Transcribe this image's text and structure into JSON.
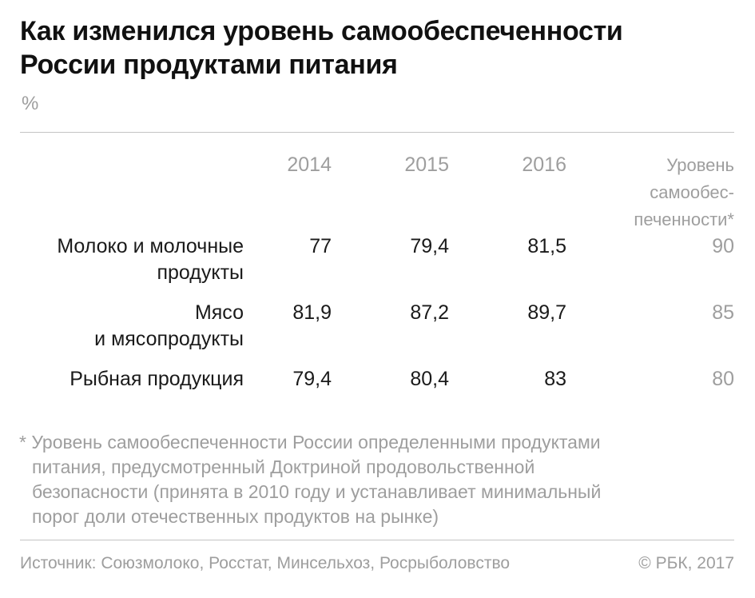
{
  "title": {
    "line1": "Как изменился уровень самообеспеченности",
    "line2": "России продуктами питания"
  },
  "unit": "%",
  "chart_data": {
    "type": "table",
    "columns": [
      "2014",
      "2015",
      "2016"
    ],
    "norm_header": [
      "Уровень",
      "самообес-",
      "печенности*"
    ],
    "rows": [
      {
        "label": [
          "Молоко и молочные",
          "продукты"
        ],
        "values": [
          "77",
          "79,4",
          "81,5"
        ],
        "norm": "90"
      },
      {
        "label": [
          "Мясо",
          "и мясопродукты"
        ],
        "values": [
          "81,9",
          "87,2",
          "89,7"
        ],
        "norm": "85"
      },
      {
        "label": [
          "Рыбная продукция"
        ],
        "values": [
          "79,4",
          "80,4",
          "83"
        ],
        "norm": "80"
      }
    ]
  },
  "footnote": [
    "* Уровень самообеспеченности России определенными продуктами",
    "питания, предусмотренный Доктриной продовольственной",
    "безопасности (принята в 2010 году и устанавливает минимальный",
    "порог доли отечественных продуктов на рынке)"
  ],
  "source": "Источник: Союзмолоко, Росстат, Минсельхоз, Росрыболовство",
  "copyright": "© РБК, 2017",
  "colors": {
    "text": "#1a1a1a",
    "muted": "#9e9e9e",
    "rule": "#c4c4c4"
  }
}
